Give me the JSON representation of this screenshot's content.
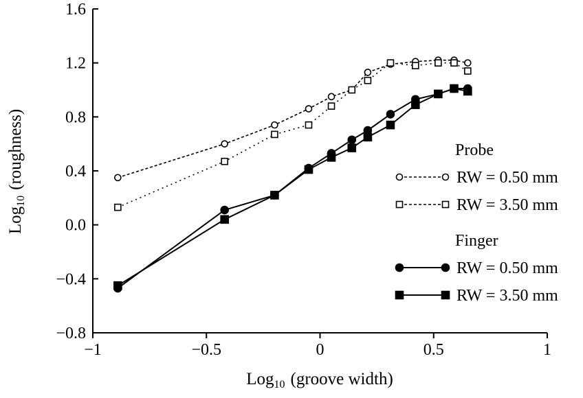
{
  "chart_data": {
    "type": "line",
    "xlabel": {
      "prefix": "Log",
      "sub": "10",
      "rest": "(groove width)"
    },
    "ylabel": {
      "prefix": "Log",
      "sub": "10",
      "rest": "(roughness)"
    },
    "xlim": [
      -1,
      1
    ],
    "ylim": [
      -0.8,
      1.6
    ],
    "xticks": [
      -1,
      -0.5,
      0,
      0.5,
      1
    ],
    "xtick_labels": [
      "−1",
      "−0.5",
      "0",
      "0.5",
      "1"
    ],
    "yticks": [
      1.6,
      1.2,
      0.8,
      0.4,
      0.0,
      -0.4,
      -0.8
    ],
    "ytick_labels": [
      "1.6",
      "1.2",
      "0.8",
      "0.4",
      "0.0",
      "−0.4",
      "−0.8"
    ],
    "grid": false,
    "legend_placement": "right",
    "legend_groups": [
      {
        "title": "Probe",
        "series": [
          0,
          1
        ]
      },
      {
        "title": "Finger",
        "series": [
          2,
          3
        ]
      }
    ],
    "x": [
      -0.89,
      -0.42,
      -0.2,
      -0.05,
      0.05,
      0.14,
      0.21,
      0.31,
      0.42,
      0.52,
      0.59,
      0.65
    ],
    "series": [
      {
        "name": "RW = 0.50 mm",
        "group": "Probe",
        "marker": "open-circle",
        "line": "dashed",
        "values": [
          0.35,
          0.6,
          0.74,
          0.86,
          0.95,
          1.0,
          1.13,
          1.19,
          1.21,
          1.22,
          1.22,
          1.2
        ]
      },
      {
        "name": "RW = 3.50 mm",
        "group": "Probe",
        "marker": "open-square",
        "line": "dotted",
        "values": [
          0.13,
          0.47,
          0.67,
          0.74,
          0.88,
          1.0,
          1.07,
          1.2,
          1.18,
          1.2,
          1.2,
          1.14
        ]
      },
      {
        "name": "RW = 0.50 mm",
        "group": "Finger",
        "marker": "filled-circle",
        "line": "solid",
        "values": [
          -0.47,
          0.11,
          0.22,
          0.42,
          0.53,
          0.63,
          0.7,
          0.82,
          0.93,
          0.97,
          1.01,
          1.01
        ]
      },
      {
        "name": "RW = 3.50 mm",
        "group": "Finger",
        "marker": "filled-square",
        "line": "solid",
        "values": [
          -0.45,
          0.04,
          0.22,
          0.41,
          0.5,
          0.57,
          0.65,
          0.74,
          0.89,
          0.97,
          1.01,
          0.99
        ]
      }
    ]
  }
}
